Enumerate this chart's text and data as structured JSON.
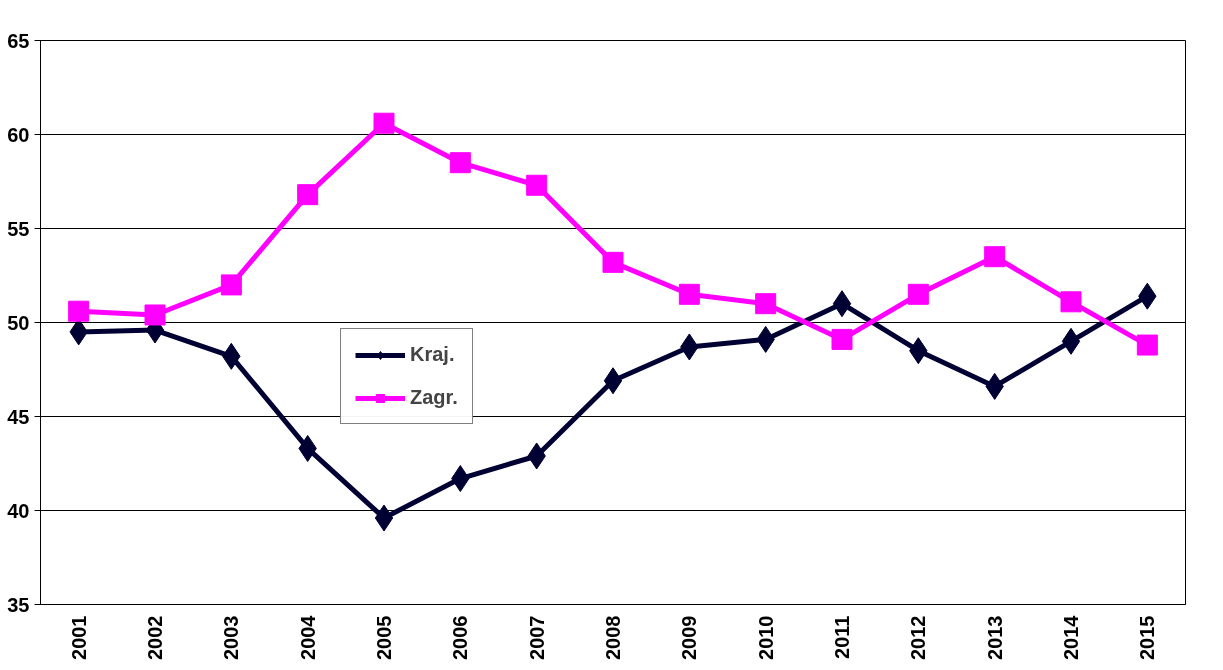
{
  "chart_data": {
    "type": "line",
    "categories": [
      "2001",
      "2002",
      "2003",
      "2004",
      "2005",
      "2006",
      "2007",
      "2008",
      "2009",
      "2010",
      "2011",
      "2012",
      "2013",
      "2014",
      "2015"
    ],
    "series": [
      {
        "name": "Kraj.",
        "color": "#000033",
        "marker": "diamond",
        "values": [
          49.5,
          49.6,
          48.2,
          43.3,
          39.6,
          41.7,
          42.9,
          46.9,
          48.7,
          49.1,
          51.0,
          48.5,
          46.6,
          49.0,
          51.4
        ]
      },
      {
        "name": "Zagr.",
        "color": "#ff00ff",
        "marker": "square",
        "values": [
          50.6,
          50.4,
          52.0,
          56.8,
          60.6,
          58.5,
          57.3,
          53.2,
          51.5,
          51.0,
          49.1,
          51.5,
          53.5,
          51.1,
          48.8
        ]
      }
    ],
    "ylim": [
      35,
      65
    ],
    "yticks": [
      35,
      40,
      45,
      50,
      55,
      60,
      65
    ],
    "grid": "y",
    "legend": "center left",
    "line_style": "solid"
  }
}
